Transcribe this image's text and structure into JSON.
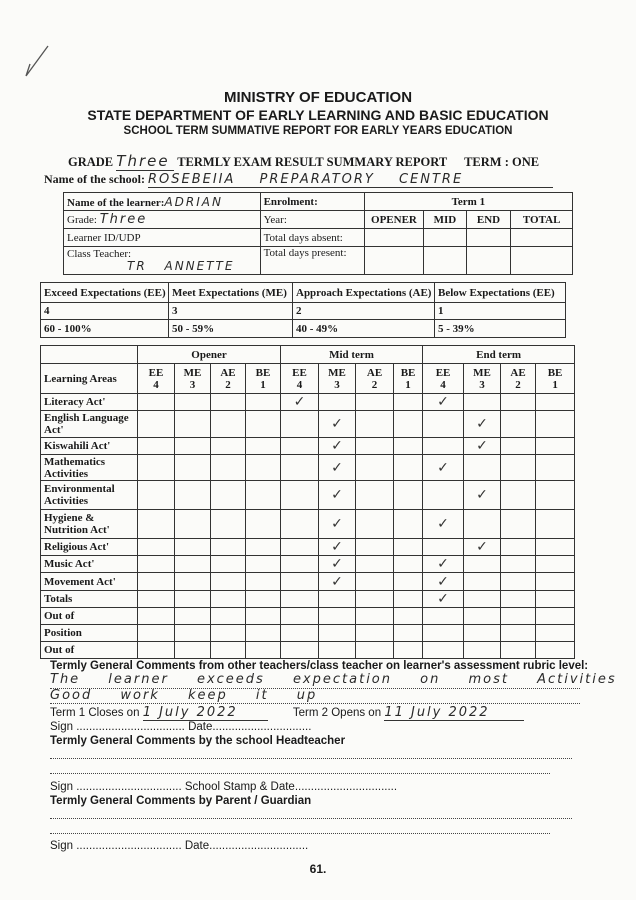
{
  "header": {
    "ministry": "MINISTRY OF EDUCATION",
    "department": "STATE DEPARTMENT OF EARLY LEARNING AND BASIC EDUCATION",
    "report": "SCHOOL TERM SUMMATIVE REPORT FOR EARLY YEARS EDUCATION"
  },
  "grade_line": {
    "grade_label": "GRADE",
    "grade_value": "Three",
    "title": "TERMLY EXAM RESULT SUMMARY REPORT",
    "term_label": "TERM : ONE"
  },
  "school": {
    "label": "Name of the school:",
    "value": "ROSEBEIIA PREPARATORY CENTRE"
  },
  "info": {
    "learner_label": "Name of the learner:",
    "learner_value": "ADRIAN",
    "grade_label": "Grade:",
    "grade_value": "Three",
    "id_label": "Learner ID/UDP",
    "teacher_label": "Class Teacher:",
    "teacher_value": "TR ANNETTE",
    "enrolment_label": "Enrolment:",
    "year_label": "Year:",
    "absent_label": "Total days absent:",
    "present_label": "Total days present:",
    "term_label": "Term 1",
    "cols": [
      "OPENER",
      "MID",
      "END",
      "TOTAL"
    ]
  },
  "rubric": {
    "headers": [
      "Exceed Expectations (EE)",
      "Meet Expectations (ME)",
      "Approach Expectations (AE)",
      "Below Expectations (EE)"
    ],
    "levels": [
      "4",
      "3",
      "2",
      "1"
    ],
    "ranges": [
      "60 - 100%",
      "50 - 59%",
      "40 - 49%",
      "5 - 39%"
    ]
  },
  "assessment": {
    "learning_areas_label": "Learning Areas",
    "groups": [
      "Opener",
      "Mid term",
      "End term"
    ],
    "subcols": [
      {
        "code": "EE",
        "level": "4"
      },
      {
        "code": "ME",
        "level": "3"
      },
      {
        "code": "AE",
        "level": "2"
      },
      {
        "code": "BE",
        "level": "1"
      }
    ],
    "check_icon": "check-mark",
    "rows": [
      {
        "label": "Literacy Act'",
        "mid": "EE",
        "end": "EE"
      },
      {
        "label": "English Language Act'",
        "mid": "ME",
        "end": "ME"
      },
      {
        "label": "Kiswahili Act'",
        "mid": "ME",
        "end": "ME"
      },
      {
        "label": "Mathematics Activities",
        "mid": "ME",
        "end": "EE"
      },
      {
        "label": "Environmental Activities",
        "mid": "ME",
        "end": "ME"
      },
      {
        "label": "Hygiene & Nutrition Act'",
        "mid": "ME",
        "end": "EE"
      },
      {
        "label": "Religious Act'",
        "mid": "ME",
        "end": "ME"
      },
      {
        "label": "Music Act'",
        "mid": "ME",
        "end": "EE"
      },
      {
        "label": "Movement Act'",
        "mid": "ME",
        "end": "EE"
      },
      {
        "label": "Totals",
        "end": "EE"
      },
      {
        "label": "Out of"
      },
      {
        "label": "Position"
      },
      {
        "label": "Out of"
      }
    ]
  },
  "comments": {
    "teacher_heading": "Termly General Comments from other teachers/class teacher on learner's assessment rubric level:",
    "teacher_line1": "The learner exceeds expectation on most Activities",
    "teacher_line2": "Good work keep it up",
    "close_label": "Term 1 Closes on",
    "close_value": "1 July 2022",
    "open_label": "Term 2 Opens on",
    "open_value": "11 July 2022",
    "sign_label": "Sign",
    "date_label": "Date",
    "head_heading": "Termly General Comments by the school Headteacher",
    "stamp_label": "School Stamp & Date",
    "parent_heading": "Termly General Comments by Parent / Guardian"
  },
  "page_number": "61."
}
